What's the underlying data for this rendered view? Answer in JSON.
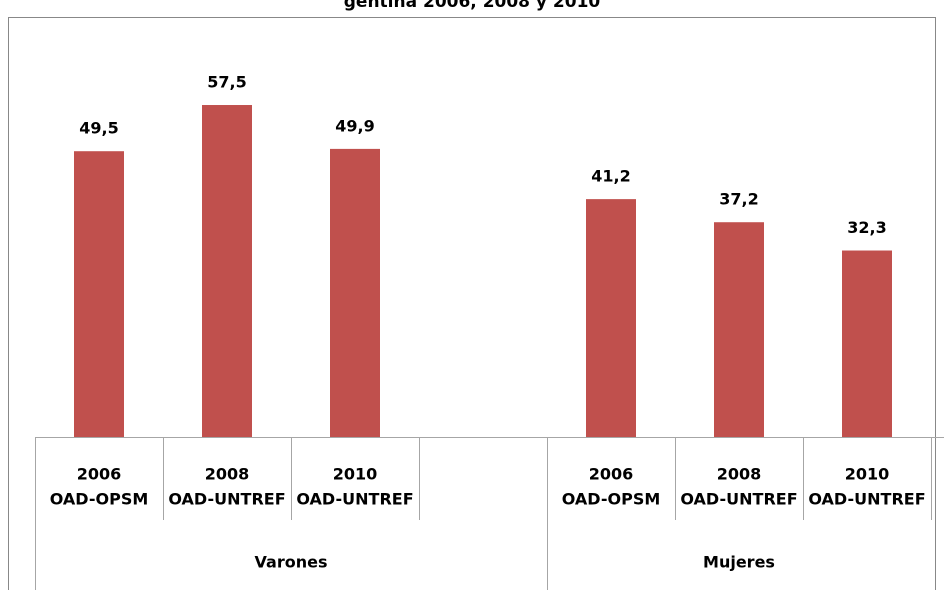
{
  "chart_data": {
    "type": "bar",
    "title": "gentina 2006, 2008 y 2010",
    "categories": [
      [
        "2006",
        "OAD-OPSM"
      ],
      [
        "2008",
        "OAD-UNTREF"
      ],
      [
        "2010",
        "OAD-UNTREF"
      ],
      null,
      [
        "2006",
        "OAD-OPSM"
      ],
      [
        "2008",
        "OAD-UNTREF"
      ],
      [
        "2010",
        "OAD-UNTREF"
      ]
    ],
    "groups": [
      "Varones",
      "Mujeres"
    ],
    "values": [
      49.5,
      57.5,
      49.9,
      null,
      41.2,
      37.2,
      32.3
    ],
    "value_labels": [
      "49,5",
      "57,5",
      "49,9",
      null,
      "41,2",
      "37,2",
      "32,3"
    ],
    "color": "#c0504d",
    "ylim": [
      0,
      72
    ]
  }
}
